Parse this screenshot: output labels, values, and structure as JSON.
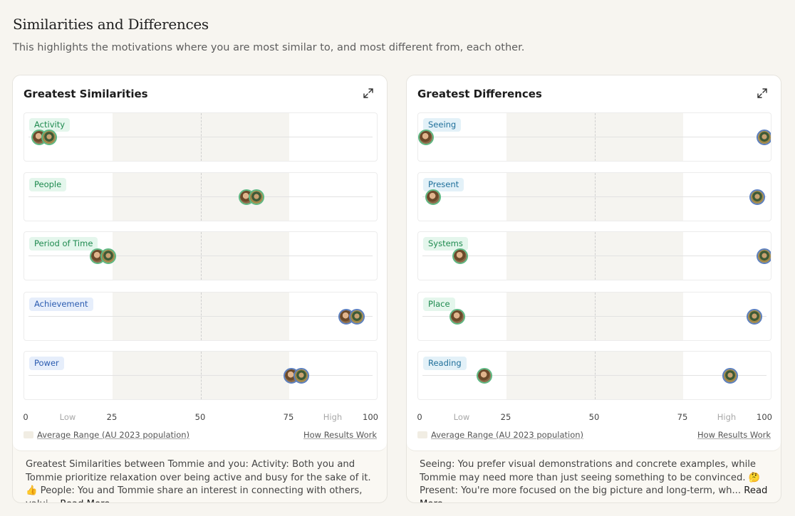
{
  "header": {
    "title": "Similarities and Differences",
    "subtitle": "This highlights the motivations where you are most similar to, and most different from, each other."
  },
  "axis": {
    "ticks": [
      "0",
      "Low",
      "25",
      "50",
      "75",
      "High",
      "100"
    ]
  },
  "legend_label": "Average Range (AU 2023 population)",
  "how_link": "How Results Work",
  "read_more": "Read More",
  "similarities": {
    "title": "Greatest Similarities",
    "rows": [
      {
        "label": "Activity",
        "tag_color": "green",
        "values": [
          3,
          6
        ]
      },
      {
        "label": "People",
        "tag_color": "green",
        "values": [
          63,
          66
        ]
      },
      {
        "label": "Period of Time",
        "tag_color": "green",
        "values": [
          20,
          23
        ]
      },
      {
        "label": "Achievement",
        "tag_color": "blue",
        "values": [
          92,
          95
        ]
      },
      {
        "label": "Power",
        "tag_color": "blue",
        "values": [
          76,
          79
        ]
      }
    ],
    "description": "Greatest Similarities between Tommie and you: Activity: Both you and Tommie prioritize relaxation over being active and busy for the sake of it. 👍 People: You and Tommie share an interest in connecting with others, valui..."
  },
  "differences": {
    "title": "Greatest Differences",
    "rows": [
      {
        "label": "Seeing",
        "tag_color": "teal",
        "values": [
          1,
          99
        ]
      },
      {
        "label": "Present",
        "tag_color": "teal",
        "values": [
          3,
          97
        ]
      },
      {
        "label": "Systems",
        "tag_color": "green",
        "values": [
          11,
          99
        ]
      },
      {
        "label": "Place",
        "tag_color": "green",
        "values": [
          10,
          96
        ]
      },
      {
        "label": "Reading",
        "tag_color": "teal",
        "values": [
          18,
          89
        ]
      }
    ],
    "description": "Seeing: You prefer visual demonstrations and concrete examples, while Tommie may need more than just seeing something to be convinced. 🤔 Present: You're more focused on the big picture and long-term, wh..."
  },
  "colors": {
    "green_ring": "#5db882",
    "blue_ring": "#5b7fbf",
    "band": "#f5f4f0"
  }
}
